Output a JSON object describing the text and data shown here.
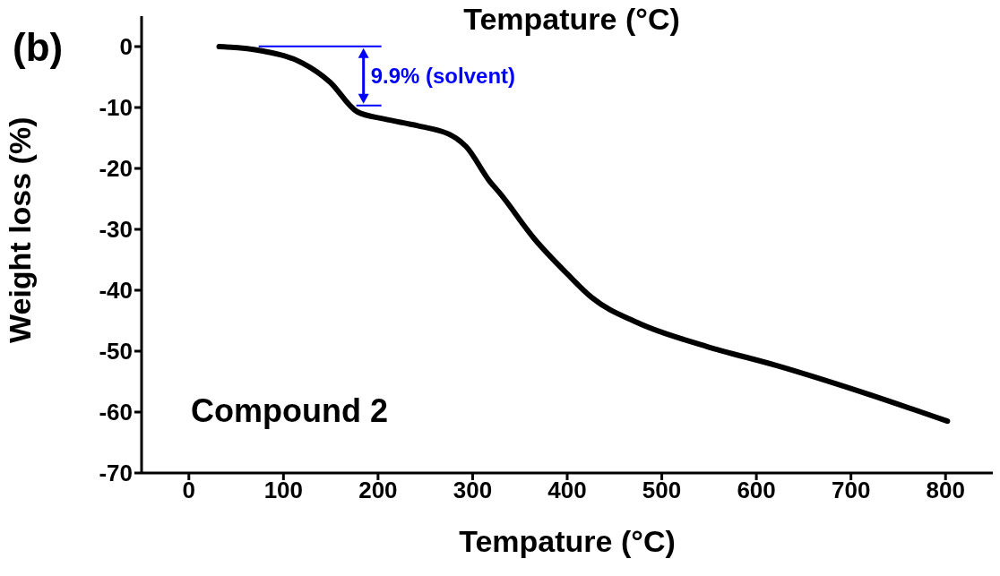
{
  "chart_data": {
    "type": "line",
    "title": "Tempature (°C)",
    "xlabel": "Tempature (°C)",
    "ylabel": "Weight loss (%)",
    "x": [
      32,
      77,
      120,
      149,
      178,
      207,
      242,
      279,
      293,
      318,
      329,
      365,
      400,
      426,
      474,
      547,
      620,
      717,
      802
    ],
    "series": [
      {
        "color": "#000000",
        "values": [
          0,
          -0.7,
          -2.7,
          -5.8,
          -10.7,
          -11.9,
          -13,
          -14.7,
          -16.4,
          -22.1,
          -24.1,
          -31.5,
          -37.3,
          -41.2,
          -45.3,
          -49.2,
          -52.3,
          -57,
          -61.5
        ]
      }
    ],
    "xlim": [
      -50,
      850
    ],
    "xticks": [
      0,
      100,
      200,
      300,
      400,
      500,
      600,
      700,
      800
    ],
    "ylim": [
      -70,
      5
    ],
    "yticks": [
      -70,
      -60,
      -50,
      -40,
      -30,
      -20,
      -10,
      0
    ],
    "annotations": [
      "(b)",
      "Compound 2",
      {
        "text": "9.9% (solvent)",
        "x": 178,
        "y": -10.7
      }
    ],
    "grid": false,
    "legend": false,
    "marker": "none",
    "line_style": "solid"
  }
}
